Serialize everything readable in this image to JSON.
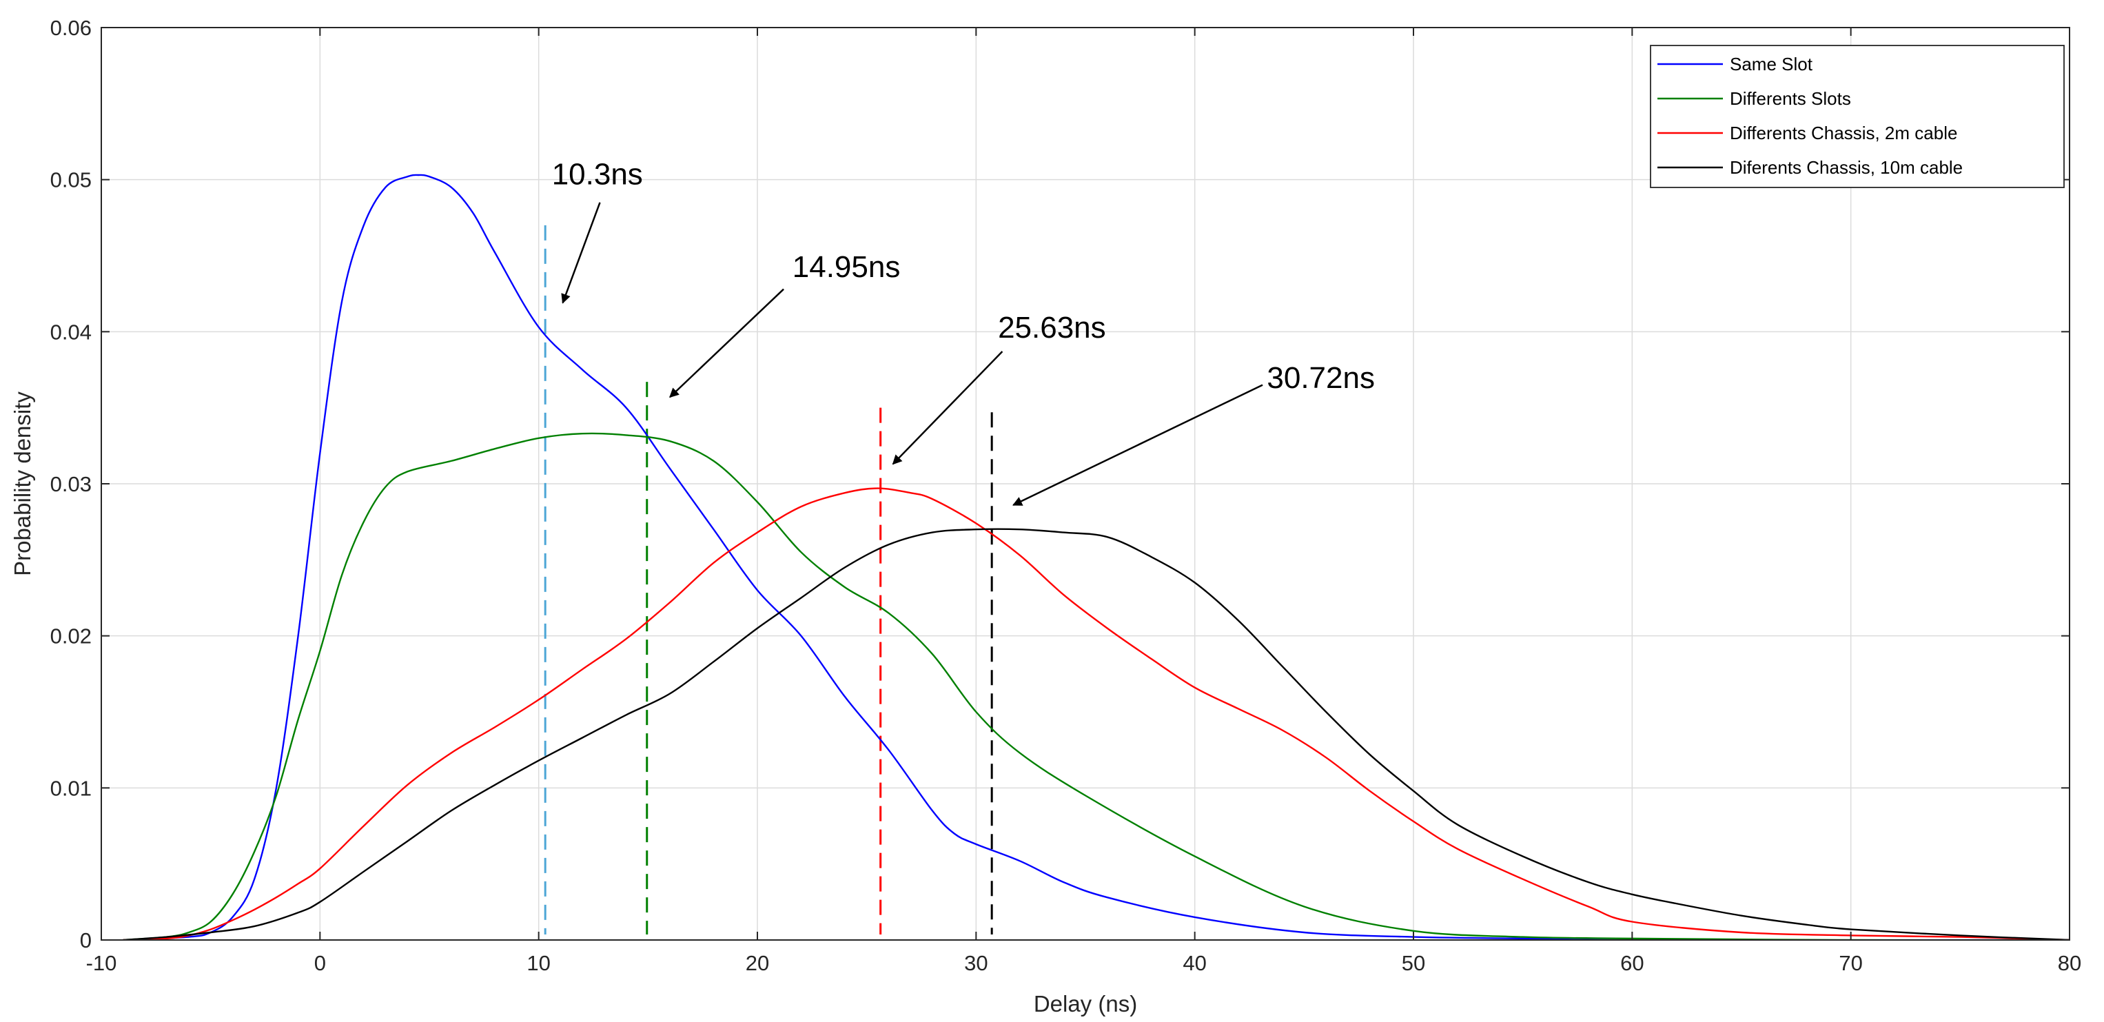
{
  "chart_data": {
    "type": "line",
    "title": "",
    "xlabel": "Delay (ns)",
    "ylabel": "Probability density",
    "xlim": [
      -10,
      80
    ],
    "ylim": [
      0,
      0.06
    ],
    "xticks": [
      -10,
      0,
      10,
      20,
      30,
      40,
      50,
      60,
      70,
      80
    ],
    "xtick_labels": [
      "-10",
      "0",
      "10",
      "20",
      "30",
      "40",
      "50",
      "60",
      "70",
      "80"
    ],
    "yticks": [
      0,
      0.01,
      0.02,
      0.03,
      0.04,
      0.05,
      0.06
    ],
    "ytick_labels": [
      "0",
      "0.01",
      "0.02",
      "0.03",
      "0.04",
      "0.05",
      "0.06"
    ],
    "grid": true,
    "legend_position": "top-right",
    "series": [
      {
        "name": "Same Slot",
        "color": "#0000ff",
        "x": [
          -9,
          -6,
          -5,
          -4,
          -3,
          -2,
          -1,
          0,
          1,
          2,
          3,
          4,
          4.5,
          5,
          6,
          7,
          8,
          10,
          12,
          14,
          16,
          18,
          20,
          22,
          24,
          26,
          28,
          29,
          30,
          32,
          34,
          36,
          40,
          45,
          50,
          55,
          60,
          80
        ],
        "y": [
          0,
          0.0002,
          0.0005,
          0.0015,
          0.004,
          0.01,
          0.02,
          0.032,
          0.042,
          0.047,
          0.0495,
          0.0502,
          0.0503,
          0.0502,
          0.0495,
          0.0478,
          0.0452,
          0.0403,
          0.0375,
          0.035,
          0.031,
          0.027,
          0.023,
          0.02,
          0.016,
          0.0125,
          0.0085,
          0.007,
          0.0063,
          0.0052,
          0.0038,
          0.0028,
          0.0015,
          0.0005,
          0.0002,
          0.0001,
          0,
          0
        ]
      },
      {
        "name": "Differents Slots",
        "color": "#008000",
        "x": [
          -9,
          -7,
          -6,
          -5,
          -4,
          -3,
          -2,
          -1,
          0,
          1,
          2,
          3,
          4,
          6,
          8,
          10,
          12,
          14,
          16,
          18,
          20,
          22,
          24,
          26,
          28,
          30,
          32,
          35,
          40,
          45,
          50,
          55,
          60,
          70,
          80
        ],
        "y": [
          0,
          0.0002,
          0.0005,
          0.0012,
          0.003,
          0.0058,
          0.0095,
          0.0145,
          0.019,
          0.024,
          0.0275,
          0.0298,
          0.0308,
          0.0315,
          0.0323,
          0.033,
          0.0333,
          0.0332,
          0.0328,
          0.0315,
          0.0288,
          0.0255,
          0.0232,
          0.0215,
          0.0188,
          0.015,
          0.0123,
          0.0095,
          0.0055,
          0.0022,
          0.0006,
          0.0002,
          0.0001,
          0,
          0
        ]
      },
      {
        "name": "Differents Chassis,  2m cable",
        "color": "#ff0000",
        "x": [
          -9,
          -7,
          -6,
          -5,
          -4,
          -3,
          -2,
          -1,
          0,
          2,
          4,
          6,
          8,
          10,
          12,
          14,
          16,
          18,
          20,
          22,
          24,
          25.5,
          27,
          28,
          30,
          32,
          34,
          36,
          38,
          40,
          42,
          44,
          46,
          48,
          50,
          52,
          55,
          58,
          60,
          65,
          70,
          75,
          80
        ],
        "y": [
          0,
          0.0001,
          0.0003,
          0.0007,
          0.0013,
          0.002,
          0.0028,
          0.0037,
          0.0047,
          0.0075,
          0.0102,
          0.0123,
          0.014,
          0.0158,
          0.0178,
          0.0198,
          0.0222,
          0.0248,
          0.0268,
          0.0285,
          0.0294,
          0.0297,
          0.0294,
          0.029,
          0.0274,
          0.0253,
          0.0227,
          0.0205,
          0.0185,
          0.0166,
          0.0152,
          0.0138,
          0.012,
          0.0098,
          0.0078,
          0.006,
          0.004,
          0.0022,
          0.0012,
          0.0005,
          0.0003,
          0.0002,
          0
        ]
      },
      {
        "name": "Diferents Chassis, 10m cable",
        "color": "#000000",
        "x": [
          -9,
          -7,
          -5,
          -3,
          -1,
          0,
          2,
          4,
          6,
          8,
          10,
          12,
          14,
          16,
          18,
          20,
          22,
          24,
          26,
          28,
          30,
          32,
          34,
          36,
          38,
          40,
          42,
          44,
          46,
          48,
          50,
          52,
          55,
          58,
          60,
          62,
          65,
          68,
          70,
          75,
          80
        ],
        "y": [
          0,
          0.0002,
          0.0005,
          0.0009,
          0.0018,
          0.0025,
          0.0045,
          0.0065,
          0.0085,
          0.0102,
          0.0118,
          0.0133,
          0.0148,
          0.0162,
          0.0183,
          0.0205,
          0.0225,
          0.0245,
          0.026,
          0.0268,
          0.027,
          0.027,
          0.0268,
          0.0265,
          0.0252,
          0.0235,
          0.021,
          0.018,
          0.015,
          0.0122,
          0.0098,
          0.0076,
          0.0055,
          0.0038,
          0.003,
          0.0024,
          0.0016,
          0.001,
          0.0007,
          0.0003,
          0
        ]
      }
    ],
    "vertical_markers": [
      {
        "x": 10.3,
        "y_top": 0.047,
        "color": "#4da6d6"
      },
      {
        "x": 14.95,
        "y_top": 0.0367,
        "color": "#008000"
      },
      {
        "x": 25.63,
        "y_top": 0.035,
        "color": "#ff0000"
      },
      {
        "x": 30.72,
        "y_top": 0.0347,
        "color": "#000000"
      }
    ],
    "annotations": [
      {
        "text": "10.3ns",
        "text_x": 10.6,
        "text_y": 0.0497,
        "arrow_from": [
          12.8,
          0.0485
        ],
        "arrow_to": [
          11.1,
          0.0419
        ]
      },
      {
        "text": "14.95ns",
        "text_x": 21.6,
        "text_y": 0.0436,
        "arrow_from": [
          21.2,
          0.0428
        ],
        "arrow_to": [
          16.0,
          0.0357
        ]
      },
      {
        "text": "25.63ns",
        "text_x": 31.0,
        "text_y": 0.0396,
        "arrow_from": [
          31.2,
          0.0387
        ],
        "arrow_to": [
          26.2,
          0.0313
        ]
      },
      {
        "text": "30.72ns",
        "text_x": 43.3,
        "text_y": 0.0363,
        "arrow_from": [
          43.1,
          0.0365
        ],
        "arrow_to": [
          31.7,
          0.0286
        ]
      }
    ]
  }
}
